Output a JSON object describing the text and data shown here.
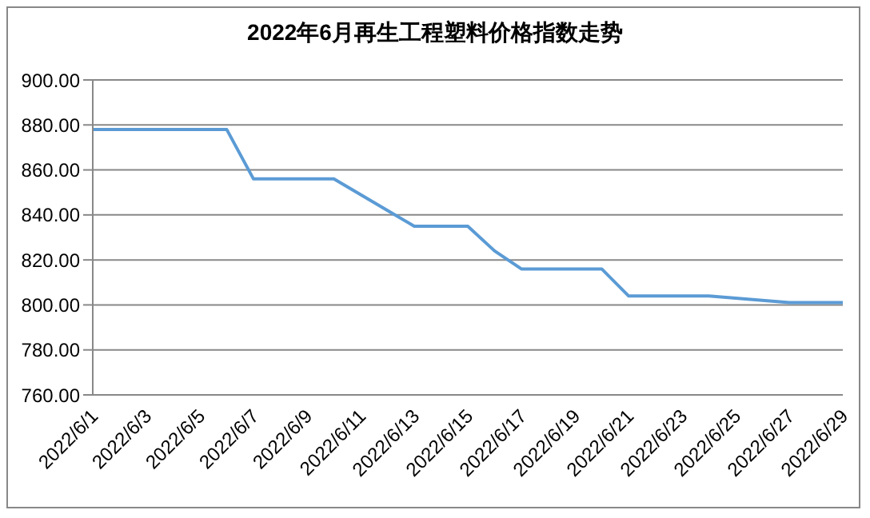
{
  "chart_data": {
    "type": "line",
    "title": "2022年6月再生工程塑料价格指数走势",
    "categories": [
      "2022/6/1",
      null,
      "2022/6/3",
      null,
      "2022/6/5",
      null,
      "2022/6/7",
      null,
      "2022/6/9",
      null,
      "2022/6/11",
      null,
      "2022/6/13",
      null,
      "2022/6/15",
      null,
      "2022/6/17",
      null,
      "2022/6/19",
      null,
      "2022/6/21",
      null,
      "2022/6/23",
      null,
      "2022/6/25",
      null,
      "2022/6/27",
      null,
      "2022/6/29"
    ],
    "series": [
      {
        "color": "#5b9bd5",
        "values": [
          878,
          878,
          878,
          878,
          878,
          878,
          856,
          856,
          856,
          856,
          849,
          842,
          835,
          835,
          835,
          824,
          816,
          816,
          816,
          816,
          804,
          804,
          804,
          804,
          803,
          802,
          801,
          801,
          801
        ]
      }
    ],
    "ylim": [
      760,
      900
    ],
    "yticks": [
      {
        "value": 760,
        "label": "760.00"
      },
      {
        "value": 780,
        "label": "780.00"
      },
      {
        "value": 800,
        "label": "800.00"
      },
      {
        "value": 820,
        "label": "820.00"
      },
      {
        "value": 840,
        "label": "840.00"
      },
      {
        "value": 860,
        "label": "860.00"
      },
      {
        "value": 880,
        "label": "880.00"
      },
      {
        "value": 900,
        "label": "900.00"
      }
    ],
    "grid": "y",
    "legend": false
  }
}
